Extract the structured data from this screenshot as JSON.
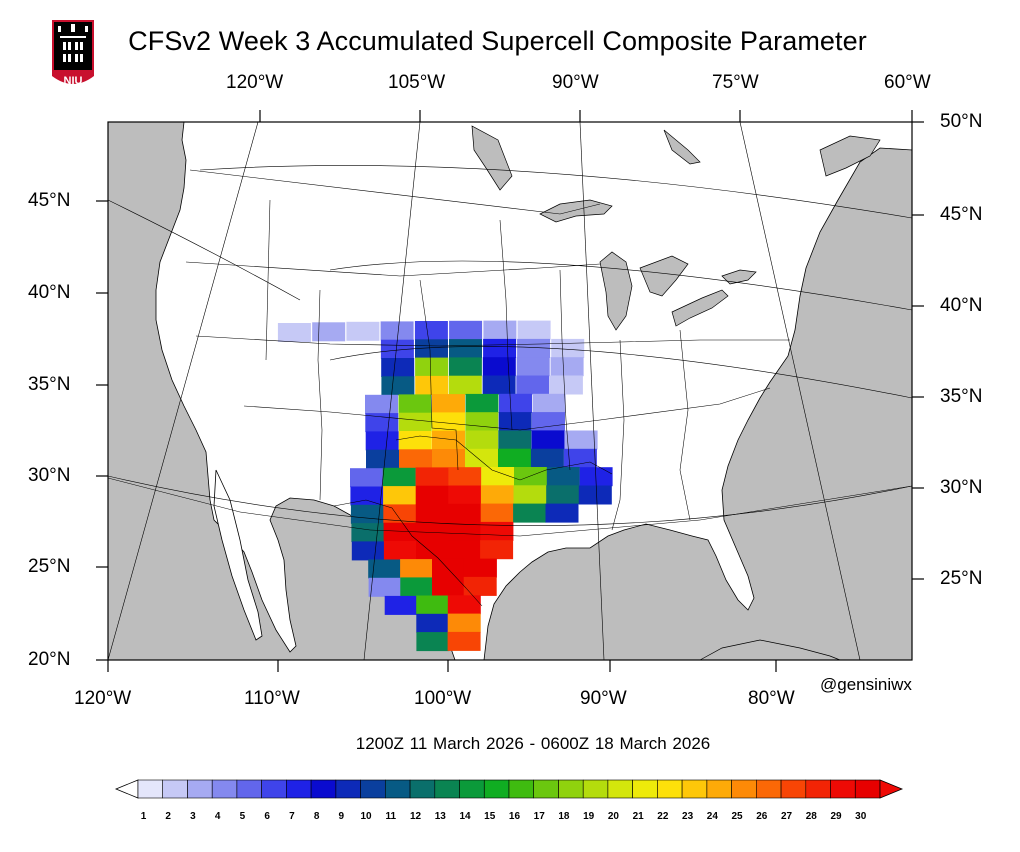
{
  "title": "CFSv2 Week 3 Accumulated Supercell Composite Parameter",
  "logo": {
    "icon": "niu-tower-logo-icon",
    "text": "NIU",
    "colors": {
      "shield": "#c8102e",
      "tower": "#000000"
    }
  },
  "credit": "@gensiniwx",
  "date_range": "1200Z 11  March  2026  - 0600Z 18  March  2026",
  "map": {
    "domain": {
      "lon": [
        -120,
        -60
      ],
      "lat": [
        20,
        50
      ]
    },
    "top_lon_labels": [
      "120°W",
      "105°W",
      "90°W",
      "75°W",
      "60°W"
    ],
    "bottom_lon_labels": [
      "120°W",
      "110°W",
      "100°W",
      "90°W",
      "80°W"
    ],
    "left_lat_labels": [
      "45°N",
      "40°N",
      "35°N",
      "30°N",
      "25°N",
      "20°N"
    ],
    "right_lat_labels": [
      "50°N",
      "45°N",
      "40°N",
      "35°N",
      "30°N",
      "25°N"
    ],
    "ocean_color": "#bdbdbd",
    "land_color": "#ffffff"
  },
  "colorbar": {
    "labels": [
      "1",
      "2",
      "3",
      "4",
      "5",
      "6",
      "7",
      "8",
      "9",
      "10",
      "11",
      "12",
      "13",
      "14",
      "15",
      "16",
      "17",
      "18",
      "19",
      "20",
      "21",
      "22",
      "23",
      "24",
      "25",
      "26",
      "27",
      "28",
      "29",
      "30"
    ],
    "colors": [
      "#e4e6fb",
      "#c6c9f6",
      "#a6aaf2",
      "#8489ef",
      "#6266ec",
      "#3f44ea",
      "#1f22e6",
      "#0a0bcf",
      "#0d2ab8",
      "#0a3f9e",
      "#075a84",
      "#0a6f6b",
      "#0a8452",
      "#0b9a3a",
      "#10ad22",
      "#3fbb10",
      "#6bc70f",
      "#90d20e",
      "#b4dc0d",
      "#d4e60c",
      "#eeea0a",
      "#fde00a",
      "#fec709",
      "#feaa08",
      "#fd8a07",
      "#fb6806",
      "#f84505",
      "#f22405",
      "#ee0a05",
      "#e70000"
    ],
    "endpoints": {
      "low": "#ffffff",
      "high": "#ee0a05"
    }
  },
  "scp_field": {
    "description_units": "accumulated SCP",
    "cells": [
      [
        -109,
        38,
        2
      ],
      [
        -107,
        38,
        3
      ],
      [
        -105,
        38,
        2
      ],
      [
        -103,
        38,
        4
      ],
      [
        -101,
        38,
        6
      ],
      [
        -99,
        38,
        5
      ],
      [
        -97,
        38,
        3
      ],
      [
        -95,
        38,
        2
      ],
      [
        -103,
        37,
        6
      ],
      [
        -101,
        37,
        10
      ],
      [
        -99,
        37,
        11
      ],
      [
        -97,
        37,
        7
      ],
      [
        -95,
        37,
        4
      ],
      [
        -93,
        37,
        2
      ],
      [
        -103,
        36,
        9
      ],
      [
        -101,
        36,
        18
      ],
      [
        -99,
        36,
        13
      ],
      [
        -97,
        36,
        8
      ],
      [
        -95,
        36,
        4
      ],
      [
        -93,
        36,
        3
      ],
      [
        -103,
        35,
        11
      ],
      [
        -101,
        35,
        23
      ],
      [
        -99,
        35,
        19
      ],
      [
        -97,
        35,
        9
      ],
      [
        -95,
        35,
        5
      ],
      [
        -93,
        35,
        2
      ],
      [
        -104,
        34,
        4
      ],
      [
        -102,
        34,
        17
      ],
      [
        -100,
        34,
        24
      ],
      [
        -98,
        34,
        14
      ],
      [
        -96,
        34,
        6
      ],
      [
        -94,
        34,
        3
      ],
      [
        -104,
        33,
        6
      ],
      [
        -102,
        33,
        19
      ],
      [
        -100,
        33,
        22
      ],
      [
        -98,
        33,
        18
      ],
      [
        -96,
        33,
        9
      ],
      [
        -94,
        33,
        5
      ],
      [
        -104,
        32,
        7
      ],
      [
        -102,
        32,
        22
      ],
      [
        -100,
        32,
        24
      ],
      [
        -98,
        32,
        19
      ],
      [
        -96,
        32,
        12
      ],
      [
        -94,
        32,
        8
      ],
      [
        -92,
        32,
        3
      ],
      [
        -104,
        31,
        10
      ],
      [
        -102,
        31,
        26
      ],
      [
        -100,
        31,
        25
      ],
      [
        -98,
        31,
        20
      ],
      [
        -96,
        31,
        15
      ],
      [
        -94,
        31,
        10
      ],
      [
        -92,
        31,
        6
      ],
      [
        -105,
        30,
        5
      ],
      [
        -103,
        30,
        14
      ],
      [
        -101,
        30,
        28
      ],
      [
        -99,
        30,
        27
      ],
      [
        -97,
        30,
        21
      ],
      [
        -95,
        30,
        17
      ],
      [
        -93,
        30,
        11
      ],
      [
        -91,
        30,
        7
      ],
      [
        -105,
        29,
        7
      ],
      [
        -103,
        29,
        23
      ],
      [
        -101,
        29,
        30
      ],
      [
        -99,
        29,
        29
      ],
      [
        -97,
        29,
        24
      ],
      [
        -95,
        29,
        19
      ],
      [
        -93,
        29,
        12
      ],
      [
        -91,
        29,
        9
      ],
      [
        -105,
        28,
        11
      ],
      [
        -103,
        28,
        27
      ],
      [
        -101,
        28,
        30
      ],
      [
        -99,
        28,
        30
      ],
      [
        -97,
        28,
        26
      ],
      [
        -95,
        28,
        13
      ],
      [
        -93,
        28,
        9
      ],
      [
        -105,
        27,
        12
      ],
      [
        -103,
        27,
        30
      ],
      [
        -101,
        27,
        30
      ],
      [
        -99,
        27,
        30
      ],
      [
        -97,
        27,
        29
      ],
      [
        -105,
        26,
        9
      ],
      [
        -103,
        26,
        29
      ],
      [
        -101,
        26,
        30
      ],
      [
        -99,
        26,
        30
      ],
      [
        -97,
        26,
        28
      ],
      [
        -104,
        25,
        11
      ],
      [
        -102,
        25,
        25
      ],
      [
        -100,
        25,
        30
      ],
      [
        -98,
        25,
        30
      ],
      [
        -104,
        24,
        4
      ],
      [
        -102,
        24,
        14
      ],
      [
        -100,
        24,
        30
      ],
      [
        -98,
        24,
        28
      ],
      [
        -103,
        23,
        7
      ],
      [
        -101,
        23,
        16
      ],
      [
        -99,
        23,
        29
      ],
      [
        -101,
        22,
        9
      ],
      [
        -99,
        22,
        25
      ],
      [
        -101,
        21,
        13
      ],
      [
        -99,
        21,
        27
      ]
    ]
  }
}
